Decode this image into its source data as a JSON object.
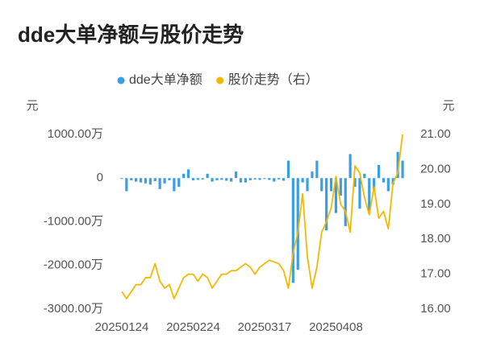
{
  "chart_data": {
    "type": "bar-line",
    "title": "dde大单净额与股价走势",
    "y_axis_label": "元",
    "y2_axis_label": "元",
    "categories": [
      "20250124",
      null,
      null,
      null,
      null,
      null,
      null,
      null,
      null,
      null,
      null,
      null,
      null,
      null,
      null,
      "20250224",
      null,
      null,
      null,
      null,
      null,
      null,
      null,
      null,
      null,
      null,
      null,
      null,
      null,
      null,
      "20250317",
      null,
      null,
      null,
      null,
      null,
      null,
      null,
      null,
      null,
      null,
      null,
      null,
      null,
      null,
      "20250408",
      null,
      null,
      null,
      null,
      null,
      null,
      null,
      null,
      null,
      null,
      null,
      null,
      null,
      null
    ],
    "series": [
      {
        "name": "dde大单净额",
        "type": "bar",
        "color": "#3a9ee4",
        "values": [
          -20,
          -300,
          -50,
          -80,
          -100,
          -120,
          -150,
          -70,
          -250,
          -120,
          -50,
          -300,
          -200,
          100,
          200,
          -50,
          -40,
          -30,
          100,
          -80,
          -50,
          -40,
          -60,
          -80,
          150,
          -100,
          -100,
          -50,
          -30,
          -40,
          -20,
          -40,
          -80,
          -30,
          -60,
          400,
          -2400,
          -2100,
          -100,
          -300,
          150,
          400,
          -300,
          -1200,
          -300,
          -800,
          -400,
          -1100,
          550,
          -200,
          -700,
          100,
          -800,
          -300,
          300,
          -100,
          -300,
          -150,
          600,
          400
        ]
      },
      {
        "name": "股价走势（右）",
        "type": "line",
        "axis": "y2",
        "color": "#f5b800",
        "values": [
          16.5,
          16.3,
          16.5,
          16.7,
          16.7,
          16.9,
          16.9,
          17.3,
          16.8,
          16.6,
          16.7,
          16.3,
          16.6,
          16.9,
          17.0,
          17.0,
          16.8,
          17.0,
          16.9,
          16.6,
          16.8,
          17.0,
          17.0,
          17.1,
          17.1,
          17.2,
          17.3,
          17.2,
          17.0,
          17.2,
          17.3,
          17.4,
          17.35,
          17.3,
          17.1,
          16.6,
          17.6,
          18.2,
          19.3,
          17.5,
          16.6,
          17.2,
          18.2,
          18.5,
          18.9,
          19.8,
          19.0,
          18.8,
          18.2,
          20.1,
          19.9,
          19.2,
          18.7,
          19.5,
          18.6,
          18.8,
          18.3,
          19.6,
          19.9,
          21.0
        ]
      }
    ],
    "ylim": [
      -3000,
      1000
    ],
    "yticks": [
      {
        "value": 1000,
        "label": "1000.00万"
      },
      0,
      {
        "value": -1000,
        "label": "-1000.00万"
      },
      {
        "value": -2000,
        "label": "-2000.00万"
      },
      {
        "value": -3000,
        "label": "-3000.00万"
      }
    ],
    "y2lim": [
      16,
      21
    ],
    "y2ticks": [
      {
        "value": 21,
        "label": "21.00"
      },
      {
        "value": 20,
        "label": "20.00"
      },
      {
        "value": 19,
        "label": "19.00"
      },
      {
        "value": 18,
        "label": "18.00"
      },
      {
        "value": 17,
        "label": "17.00"
      },
      {
        "value": 16,
        "label": "16.00"
      }
    ],
    "grid": false
  }
}
